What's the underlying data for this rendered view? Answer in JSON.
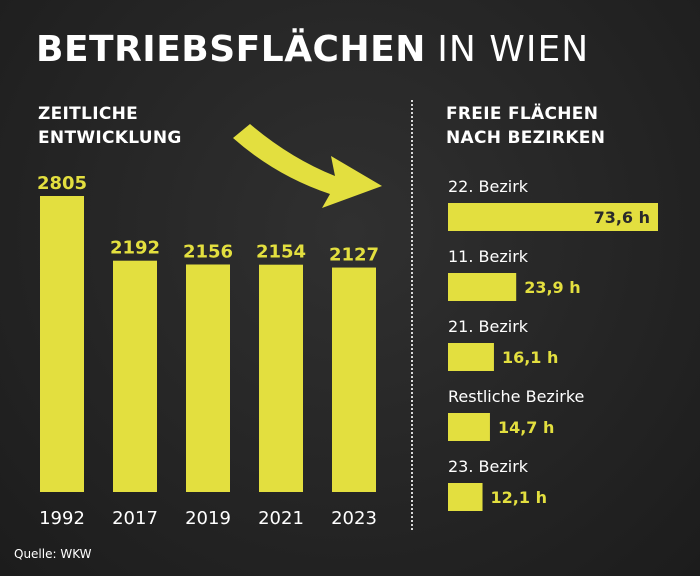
{
  "title": {
    "bold": "BETRIEBSFLÄCHEN",
    "light": "IN WIEN"
  },
  "left_heading": [
    "ZEITLICHE",
    "ENTWICKLUNG"
  ],
  "right_heading": [
    "FREIE FLÄCHEN",
    "NACH BEZIRKEN"
  ],
  "source": "Quelle: WKW",
  "colors": {
    "bar": "#e3df3f",
    "background": "#262626",
    "text": "#ffffff"
  },
  "chart_data": [
    {
      "type": "bar",
      "categories": [
        "1992",
        "2017",
        "2019",
        "2021",
        "2023"
      ],
      "values": [
        2805,
        2192,
        2156,
        2154,
        2127
      ],
      "value_labels": [
        "2805",
        "2192",
        "2156",
        "2154",
        "2127"
      ],
      "ylim": [
        0,
        2805
      ]
    },
    {
      "type": "bar",
      "orientation": "horizontal",
      "categories": [
        "22. Bezirk",
        "11. Bezirk",
        "21. Bezirk",
        "Restliche Bezirke",
        "23. Bezirk"
      ],
      "values": [
        73.6,
        23.9,
        16.1,
        14.7,
        12.1
      ],
      "value_labels": [
        "73,6 h",
        "23,9 h",
        "16,1 h",
        "14,7 h",
        "12,1 h"
      ],
      "xlim": [
        0,
        73.6
      ]
    }
  ]
}
